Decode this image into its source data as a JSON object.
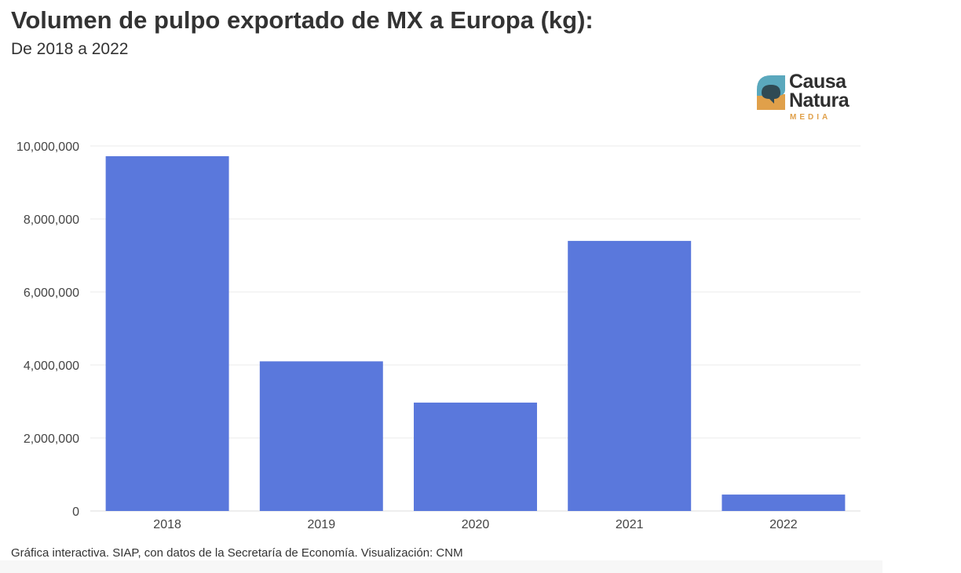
{
  "title": "Volumen de pulpo exportado de MX a Europa (kg):",
  "subtitle": "De 2018 a 2022",
  "logo": {
    "line1": "Causa",
    "line2": "Natura",
    "line3": "MEDIA",
    "colors": {
      "teal": "#5aa8bd",
      "orange": "#e0a04a",
      "dark": "#2f2f2f"
    }
  },
  "footer": "Gráfica interactiva. SIAP, con datos de la Secretaría de Economía. Visualización: CNM",
  "chart_data": {
    "type": "bar",
    "categories": [
      "2018",
      "2019",
      "2020",
      "2021",
      "2022"
    ],
    "values": [
      9720000,
      4100000,
      2970000,
      7400000,
      450000
    ],
    "ylim": [
      0,
      10000000
    ],
    "yticks": [
      0,
      2000000,
      4000000,
      6000000,
      8000000,
      10000000
    ],
    "ytick_labels": [
      "0",
      "2,000,000",
      "4,000,000",
      "6,000,000",
      "8,000,000",
      "10,000,000"
    ],
    "grid": true,
    "bar_color": "#5a78dc",
    "grid_color": "#ebebeb"
  }
}
